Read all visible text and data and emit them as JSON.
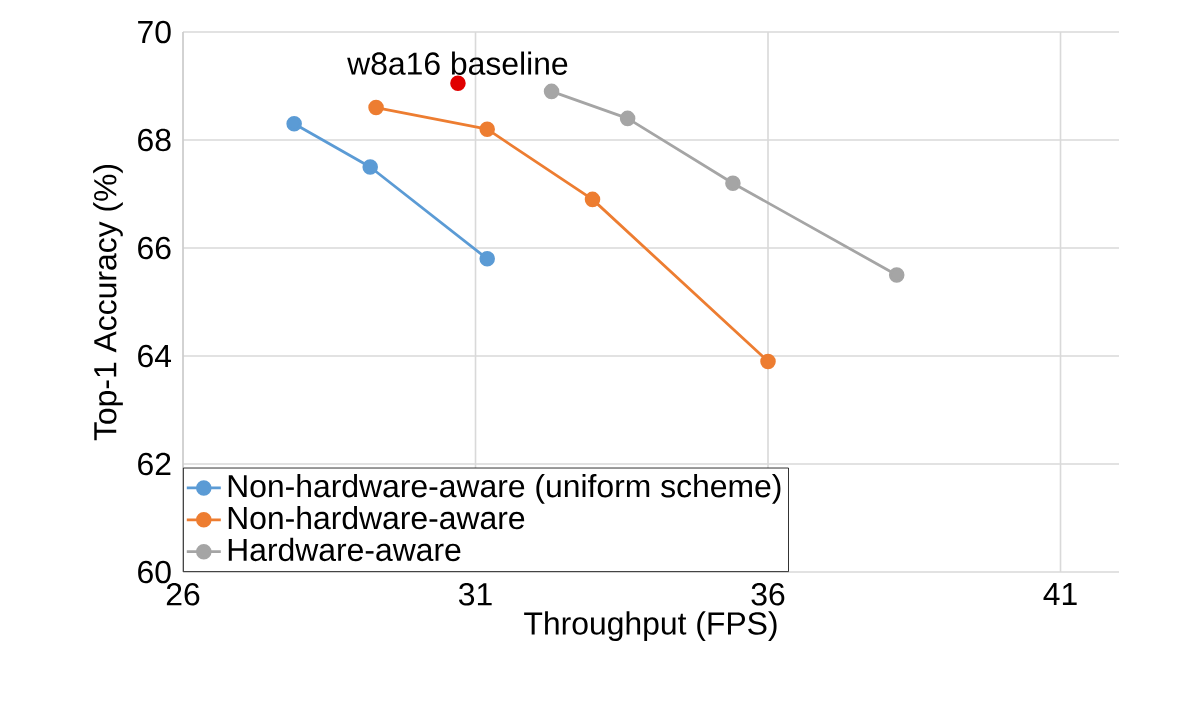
{
  "chart_data": {
    "type": "line",
    "xlabel": "Throughput (FPS)",
    "ylabel": "Top-1 Accuracy (%)",
    "xlim": [
      26,
      42
    ],
    "xticks": [
      26,
      31,
      36,
      41
    ],
    "ylim": [
      60,
      70
    ],
    "yticks": [
      60,
      62,
      64,
      66,
      68,
      70
    ],
    "grid": true,
    "legend": "bottom",
    "marker": "circle",
    "line_style": "solid",
    "series": [
      {
        "name": "Non-hardware-aware (uniform scheme)",
        "color": "#5b9bd5",
        "x": [
          27.9,
          29.2,
          31.2
        ],
        "values": [
          68.3,
          67.5,
          65.8
        ]
      },
      {
        "name": "Non-hardware-aware",
        "color": "#ed7d31",
        "x": [
          29.3,
          31.2,
          33.0,
          36.0
        ],
        "values": [
          68.6,
          68.2,
          66.9,
          63.9
        ]
      },
      {
        "name": "Hardware-aware",
        "color": "#a5a5a5",
        "x": [
          32.3,
          33.6,
          35.4,
          38.2
        ],
        "values": [
          68.9,
          68.4,
          67.2,
          65.5
        ]
      },
      {
        "type": "scatter",
        "color": "#e00000",
        "x": [
          30.7
        ],
        "values": [
          69.05
        ]
      }
    ],
    "annotations": [
      {
        "text": "w8a16 baseline",
        "x": 30.7,
        "y": 69.05
      }
    ]
  }
}
